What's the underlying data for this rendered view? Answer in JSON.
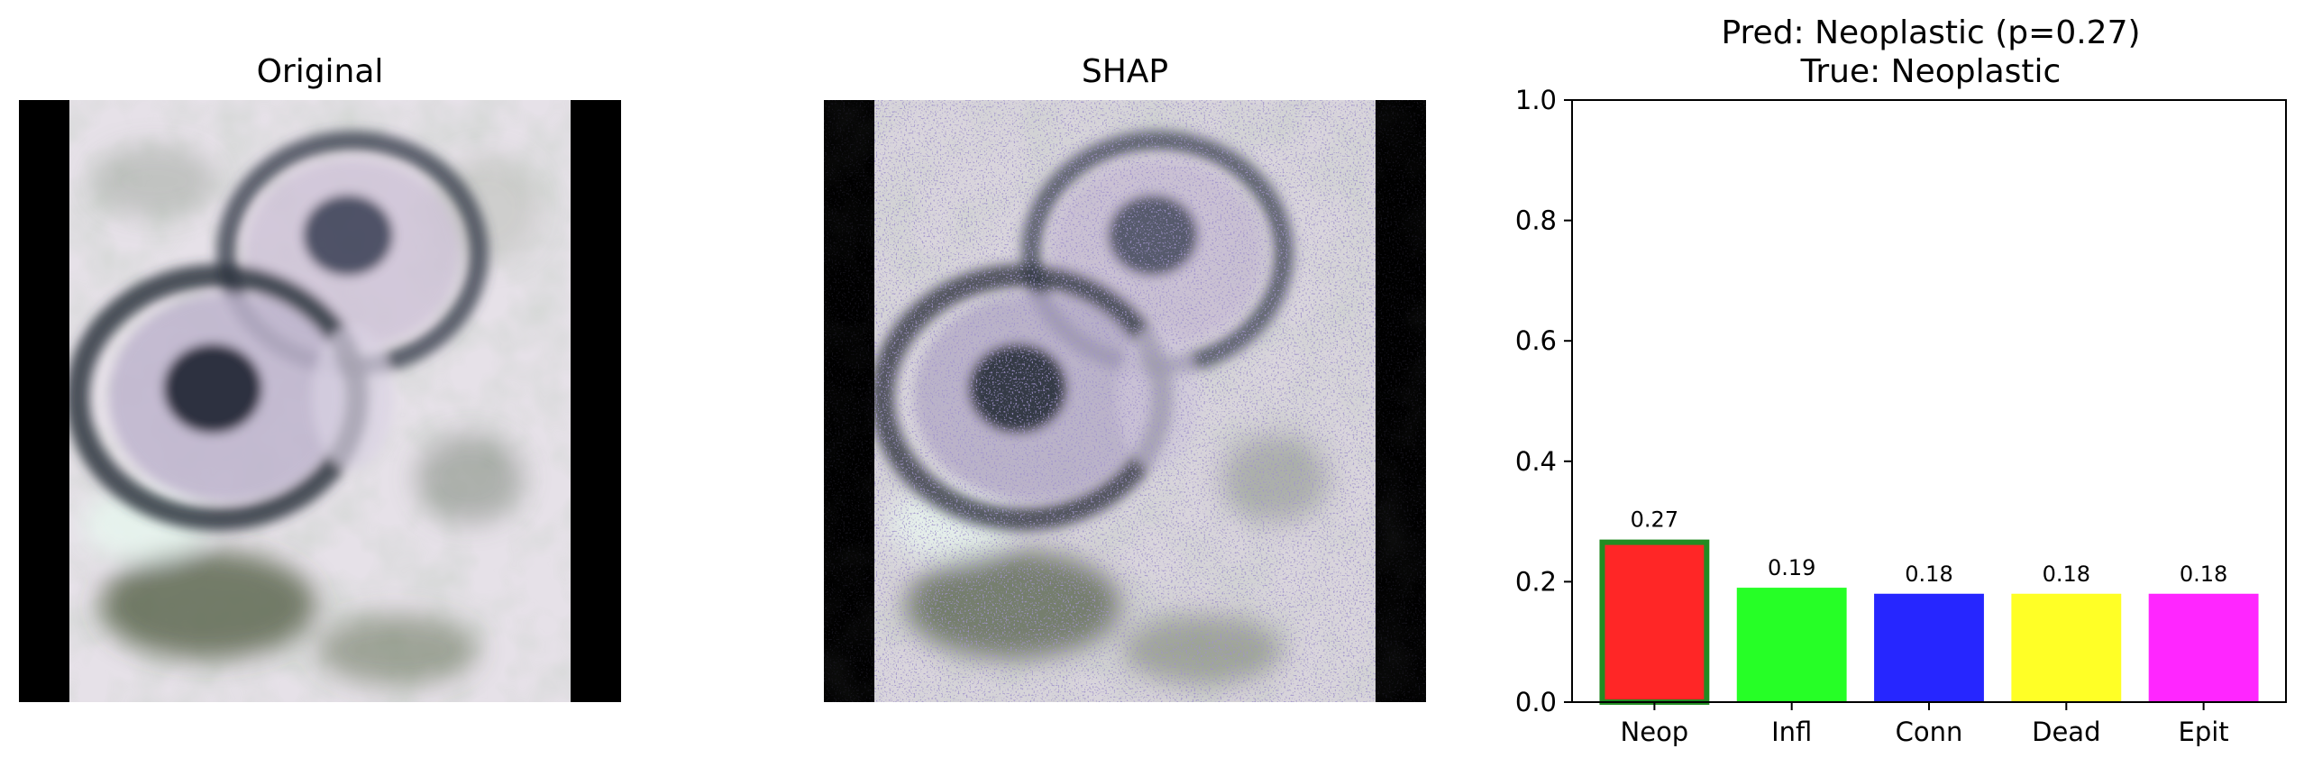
{
  "panels": {
    "original": {
      "title": "Original"
    },
    "shap": {
      "title": "SHAP"
    },
    "prediction": {
      "title_line1": "Pred: Neoplastic (p=0.27)",
      "title_line2": "True: Neoplastic"
    }
  },
  "colors": {
    "highlight_edge": "#228b22",
    "tissue_background": "#e4dfe6",
    "nucleus": "#2a2f3e",
    "shap_overlay": "#5a4a9a"
  },
  "chart_data": {
    "type": "bar",
    "categories": [
      "Neop",
      "Infl",
      "Conn",
      "Dead",
      "Epit"
    ],
    "values": [
      0.27,
      0.19,
      0.18,
      0.18,
      0.18
    ],
    "value_labels": [
      "0.27",
      "0.19",
      "0.18",
      "0.18",
      "0.18"
    ],
    "colors": [
      "#ff2626",
      "#26ff26",
      "#2626ff",
      "#ffff26",
      "#ff26ff"
    ],
    "highlighted_category": "Neop",
    "ylim": [
      0,
      1
    ],
    "yticks": [
      0.0,
      0.2,
      0.4,
      0.6,
      0.8,
      1.0
    ],
    "ytick_labels": [
      "0.0",
      "0.2",
      "0.4",
      "0.6",
      "0.8",
      "1.0"
    ],
    "xlabel": "",
    "ylabel": "",
    "grid": false
  }
}
